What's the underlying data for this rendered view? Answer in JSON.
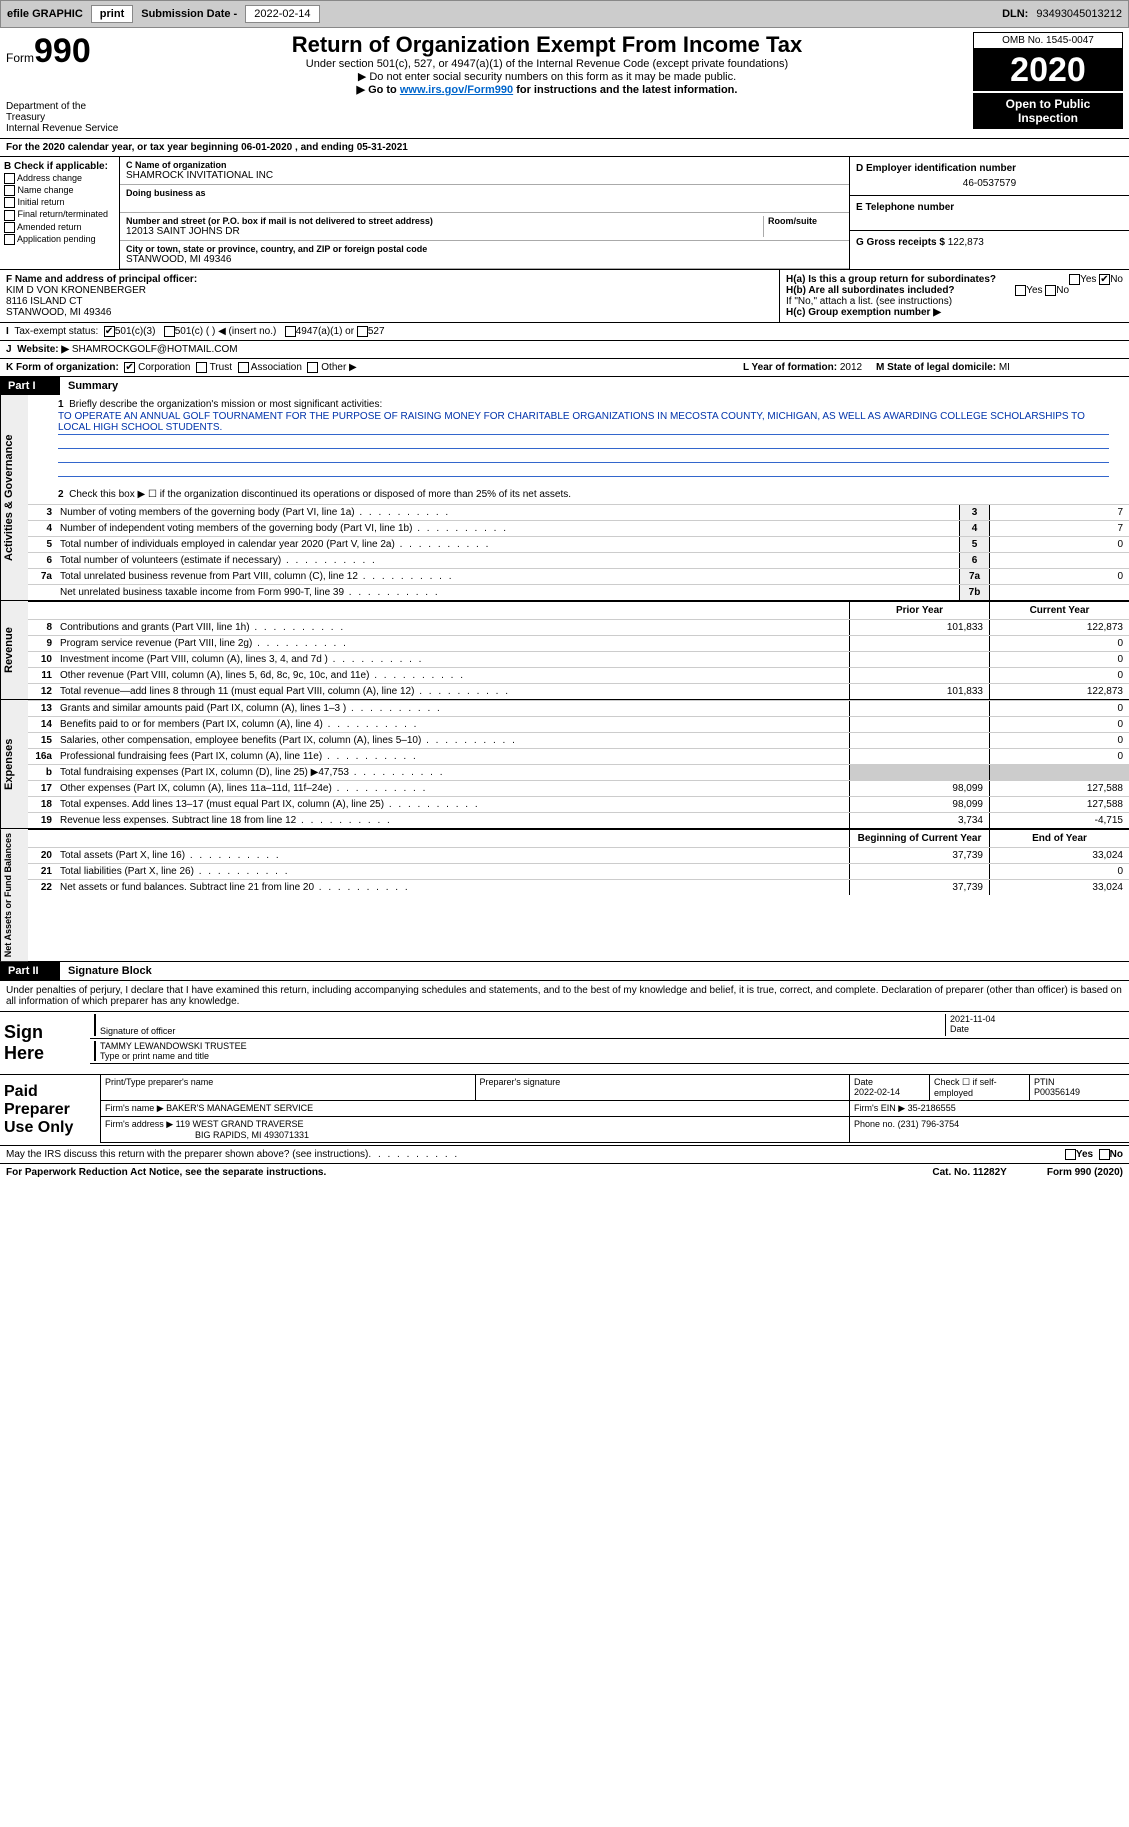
{
  "topbar": {
    "efile_label": "efile GRAPHIC",
    "print_btn": "print",
    "sub_date_label": "Submission Date -",
    "sub_date": "2022-02-14",
    "dln_label": "DLN:",
    "dln": "93493045013212"
  },
  "header": {
    "form_label": "Form",
    "form_num": "990",
    "dept": "Department of the Treasury",
    "irs": "Internal Revenue Service",
    "title": "Return of Organization Exempt From Income Tax",
    "sub1": "Under section 501(c), 527, or 4947(a)(1) of the Internal Revenue Code (except private foundations)",
    "sub2": "▶ Do not enter social security numbers on this form as it may be made public.",
    "sub3_pre": "▶ Go to ",
    "sub3_link": "www.irs.gov/Form990",
    "sub3_post": " for instructions and the latest information.",
    "omb": "OMB No. 1545-0047",
    "year": "2020",
    "open": "Open to Public Inspection"
  },
  "line_a": "For the 2020 calendar year, or tax year beginning 06-01-2020    , and ending 05-31-2021",
  "col_b": {
    "hdr": "B Check if applicable:",
    "opts": [
      "Address change",
      "Name change",
      "Initial return",
      "Final return/terminated",
      "Amended return",
      "Application pending"
    ]
  },
  "col_c": {
    "name_lbl": "C Name of organization",
    "name": "SHAMROCK INVITATIONAL INC",
    "dba_lbl": "Doing business as",
    "addr_lbl": "Number and street (or P.O. box if mail is not delivered to street address)",
    "room_lbl": "Room/suite",
    "addr": "12013 SAINT JOHNS DR",
    "city_lbl": "City or town, state or province, country, and ZIP or foreign postal code",
    "city": "STANWOOD, MI  49346"
  },
  "col_d": {
    "ein_lbl": "D Employer identification number",
    "ein": "46-0537579",
    "tel_lbl": "E Telephone number",
    "gross_lbl": "G Gross receipts $",
    "gross": "122,873"
  },
  "row_f": {
    "lbl": "F  Name and address of principal officer:",
    "name": "KIM D VON KRONENBERGER",
    "addr1": "8116 ISLAND CT",
    "addr2": "STANWOOD, MI  49346"
  },
  "row_h": {
    "ha": "H(a)  Is this a group return for subordinates?",
    "hb": "H(b)  Are all subordinates included?",
    "hb_note": "If \"No,\" attach a list. (see instructions)",
    "hc": "H(c)  Group exemption number ▶",
    "yes": "Yes",
    "no": "No"
  },
  "row_i": {
    "lbl": "Tax-exempt status:",
    "o1": "501(c)(3)",
    "o2": "501(c) (   ) ◀ (insert no.)",
    "o3": "4947(a)(1) or",
    "o4": "527"
  },
  "row_j": {
    "lbl": "Website: ▶",
    "val": "SHAMROCKGOLF@HOTMAIL.COM"
  },
  "row_k": {
    "lbl": "K Form of organization:",
    "o1": "Corporation",
    "o2": "Trust",
    "o3": "Association",
    "o4": "Other ▶"
  },
  "row_lm": {
    "l_lbl": "L Year of formation:",
    "l_val": "2012",
    "m_lbl": "M State of legal domicile:",
    "m_val": "MI"
  },
  "part1": {
    "tab": "Part I",
    "title": "Summary",
    "side_ag": "Activities & Governance",
    "side_rev": "Revenue",
    "side_exp": "Expenses",
    "side_net": "Net Assets or Fund Balances",
    "q1_lbl": "Briefly describe the organization's mission or most significant activities:",
    "q1_val": "TO OPERATE AN ANNUAL GOLF TOURNAMENT FOR THE PURPOSE OF RAISING MONEY FOR CHARITABLE ORGANIZATIONS IN MECOSTA COUNTY, MICHIGAN, AS WELL AS AWARDING COLLEGE SCHOLARSHIPS TO LOCAL HIGH SCHOOL STUDENTS.",
    "q2": "Check this box ▶ ☐  if the organization discontinued its operations or disposed of more than 25% of its net assets.",
    "rows_ag": [
      {
        "n": "3",
        "desc": "Number of voting members of the governing body (Part VI, line 1a)",
        "box": "3",
        "val": "7"
      },
      {
        "n": "4",
        "desc": "Number of independent voting members of the governing body (Part VI, line 1b)",
        "box": "4",
        "val": "7"
      },
      {
        "n": "5",
        "desc": "Total number of individuals employed in calendar year 2020 (Part V, line 2a)",
        "box": "5",
        "val": "0"
      },
      {
        "n": "6",
        "desc": "Total number of volunteers (estimate if necessary)",
        "box": "6",
        "val": ""
      },
      {
        "n": "7a",
        "desc": "Total unrelated business revenue from Part VIII, column (C), line 12",
        "box": "7a",
        "val": "0"
      },
      {
        "n": "",
        "desc": "Net unrelated business taxable income from Form 990-T, line 39",
        "box": "7b",
        "val": ""
      }
    ],
    "fin_hdr_py": "Prior Year",
    "fin_hdr_cy": "Current Year",
    "rows_rev": [
      {
        "n": "8",
        "desc": "Contributions and grants (Part VIII, line 1h)",
        "py": "101,833",
        "cy": "122,873"
      },
      {
        "n": "9",
        "desc": "Program service revenue (Part VIII, line 2g)",
        "py": "",
        "cy": "0"
      },
      {
        "n": "10",
        "desc": "Investment income (Part VIII, column (A), lines 3, 4, and 7d )",
        "py": "",
        "cy": "0"
      },
      {
        "n": "11",
        "desc": "Other revenue (Part VIII, column (A), lines 5, 6d, 8c, 9c, 10c, and 11e)",
        "py": "",
        "cy": "0"
      },
      {
        "n": "12",
        "desc": "Total revenue—add lines 8 through 11 (must equal Part VIII, column (A), line 12)",
        "py": "101,833",
        "cy": "122,873"
      }
    ],
    "rows_exp": [
      {
        "n": "13",
        "desc": "Grants and similar amounts paid (Part IX, column (A), lines 1–3 )",
        "py": "",
        "cy": "0"
      },
      {
        "n": "14",
        "desc": "Benefits paid to or for members (Part IX, column (A), line 4)",
        "py": "",
        "cy": "0"
      },
      {
        "n": "15",
        "desc": "Salaries, other compensation, employee benefits (Part IX, column (A), lines 5–10)",
        "py": "",
        "cy": "0"
      },
      {
        "n": "16a",
        "desc": "Professional fundraising fees (Part IX, column (A), line 11e)",
        "py": "",
        "cy": "0"
      },
      {
        "n": "b",
        "desc": "Total fundraising expenses (Part IX, column (D), line 25) ▶47,753",
        "py": "grey",
        "cy": "grey"
      },
      {
        "n": "17",
        "desc": "Other expenses (Part IX, column (A), lines 11a–11d, 11f–24e)",
        "py": "98,099",
        "cy": "127,588"
      },
      {
        "n": "18",
        "desc": "Total expenses. Add lines 13–17 (must equal Part IX, column (A), line 25)",
        "py": "98,099",
        "cy": "127,588"
      },
      {
        "n": "19",
        "desc": "Revenue less expenses. Subtract line 18 from line 12",
        "py": "3,734",
        "cy": "-4,715"
      }
    ],
    "fin_hdr_boy": "Beginning of Current Year",
    "fin_hdr_eoy": "End of Year",
    "rows_net": [
      {
        "n": "20",
        "desc": "Total assets (Part X, line 16)",
        "py": "37,739",
        "cy": "33,024"
      },
      {
        "n": "21",
        "desc": "Total liabilities (Part X, line 26)",
        "py": "",
        "cy": "0"
      },
      {
        "n": "22",
        "desc": "Net assets or fund balances. Subtract line 21 from line 20",
        "py": "37,739",
        "cy": "33,024"
      }
    ]
  },
  "part2": {
    "tab": "Part II",
    "title": "Signature Block",
    "penalty": "Under penalties of perjury, I declare that I have examined this return, including accompanying schedules and statements, and to the best of my knowledge and belief, it is true, correct, and complete. Declaration of preparer (other than officer) is based on all information of which preparer has any knowledge.",
    "sign_here": "Sign Here",
    "sig_officer": "Signature of officer",
    "sig_date": "2021-11-04",
    "date_lbl": "Date",
    "name_title": "TAMMY LEWANDOWSKI  TRUSTEE",
    "name_title_lbl": "Type or print name and title",
    "prep_use": "Paid Preparer Use Only",
    "prep_name_lbl": "Print/Type preparer's name",
    "prep_sig_lbl": "Preparer's signature",
    "prep_date_lbl": "Date",
    "prep_date": "2022-02-14",
    "prep_check_lbl": "Check ☐ if self-employed",
    "ptin_lbl": "PTIN",
    "ptin": "P00356149",
    "firm_name_lbl": "Firm's name   ▶",
    "firm_name": "BAKER'S MANAGEMENT SERVICE",
    "firm_ein_lbl": "Firm's EIN ▶",
    "firm_ein": "35-2186555",
    "firm_addr_lbl": "Firm's address ▶",
    "firm_addr": "119 WEST GRAND TRAVERSE",
    "firm_addr2": "BIG RAPIDS, MI  493071331",
    "phone_lbl": "Phone no.",
    "phone": "(231) 796-3754",
    "may_irs": "May the IRS discuss this return with the preparer shown above? (see instructions)"
  },
  "footer": {
    "left": "For Paperwork Reduction Act Notice, see the separate instructions.",
    "mid": "Cat. No. 11282Y",
    "right": "Form 990 (2020)"
  }
}
